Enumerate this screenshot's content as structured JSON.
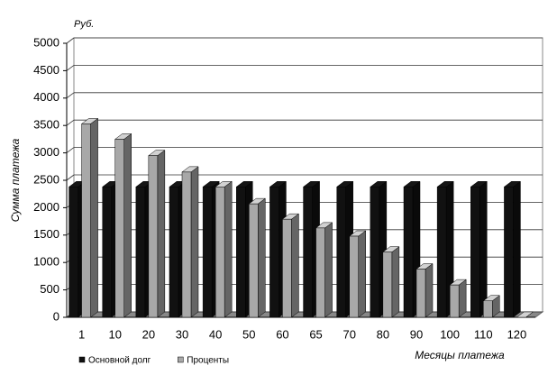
{
  "chart_data": {
    "type": "bar",
    "unit": "Руб.",
    "y_label": "Сумма платежа",
    "x_label": "Месяцы платежа",
    "categories": [
      "1",
      "10",
      "20",
      "30",
      "40",
      "50",
      "60",
      "65",
      "70",
      "80",
      "90",
      "100",
      "110",
      "120"
    ],
    "series": [
      {
        "name": "Основной долг",
        "color": "#111111",
        "values": [
          2380,
          2380,
          2380,
          2380,
          2380,
          2380,
          2380,
          2380,
          2380,
          2380,
          2380,
          2380,
          2380,
          2380
        ]
      },
      {
        "name": "Проценты",
        "color": "#a8a8a8",
        "values": [
          3530,
          3250,
          2950,
          2650,
          2380,
          2070,
          1790,
          1630,
          1480,
          1190,
          880,
          590,
          300,
          0
        ]
      }
    ],
    "ylim": [
      0,
      5000
    ],
    "yticks": [
      0,
      500,
      1000,
      1500,
      2000,
      2500,
      3000,
      3500,
      4000,
      4500,
      5000
    ],
    "grid": true,
    "legend": "bottom-left"
  }
}
